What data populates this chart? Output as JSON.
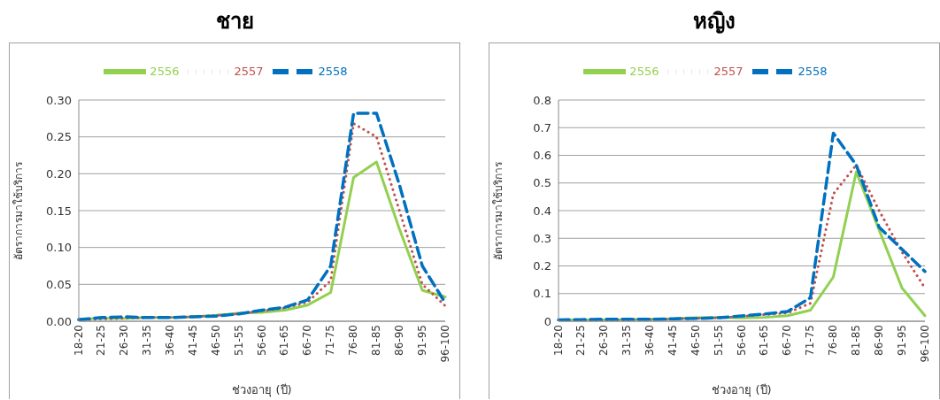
{
  "chart_data": [
    {
      "type": "line",
      "title": "ชาย",
      "xlabel": "ช่วงอายุ (ปี)",
      "ylabel": "อัตราการมาใช้บริการ",
      "categories": [
        "18-20",
        "21-25",
        "26-30",
        "31-35",
        "36-40",
        "41-45",
        "46-50",
        "51-55",
        "56-60",
        "61-65",
        "66-70",
        "71-75",
        "76-80",
        "81-85",
        "86-90",
        "91-95",
        "96-100"
      ],
      "series": [
        {
          "name": "2556",
          "color": "#92d050",
          "line_style": "solid",
          "values": [
            0.003,
            0.004,
            0.004,
            0.005,
            0.005,
            0.006,
            0.008,
            0.011,
            0.012,
            0.015,
            0.022,
            0.039,
            0.195,
            0.216,
            0.125,
            0.042,
            0.033
          ]
        },
        {
          "name": "2557",
          "color": "#c0504d",
          "line_style": "dotted",
          "values": [
            0.002,
            0.003,
            0.004,
            0.005,
            0.005,
            0.006,
            0.008,
            0.01,
            0.014,
            0.018,
            0.026,
            0.055,
            0.268,
            0.25,
            0.15,
            0.05,
            0.021
          ]
        },
        {
          "name": "2558",
          "color": "#0070c0",
          "line_style": "dashed",
          "values": [
            0.002,
            0.005,
            0.006,
            0.005,
            0.005,
            0.006,
            0.007,
            0.01,
            0.015,
            0.019,
            0.029,
            0.075,
            0.282,
            0.282,
            0.185,
            0.075,
            0.025
          ]
        }
      ],
      "ylim": [
        0,
        0.3
      ],
      "yticks": [
        {
          "value": 0,
          "label": "0.00"
        },
        {
          "value": 0.05,
          "label": "0.05"
        },
        {
          "value": 0.1,
          "label": "0.10"
        },
        {
          "value": 0.15,
          "label": "0.15"
        },
        {
          "value": 0.2,
          "label": "0.20"
        },
        {
          "value": 0.25,
          "label": "0.25"
        },
        {
          "value": 0.3,
          "label": "0.30"
        }
      ],
      "grid": "y",
      "legend": "top",
      "marker": "none"
    },
    {
      "type": "line",
      "title": "หญิง",
      "xlabel": "ช่วงอายุ (ปี)",
      "ylabel": "อัตราการมาใช้บริการ",
      "categories": [
        "18-20",
        "21-25",
        "26-30",
        "31-35",
        "36-40",
        "41-45",
        "46-50",
        "51-55",
        "56-60",
        "61-65",
        "66-70",
        "71-75",
        "76-80",
        "81-85",
        "86-90",
        "91-95",
        "96-100"
      ],
      "series": [
        {
          "name": "2556",
          "color": "#92d050",
          "line_style": "solid",
          "values": [
            0.005,
            0.005,
            0.005,
            0.006,
            0.007,
            0.009,
            0.013,
            0.014,
            0.012,
            0.014,
            0.02,
            0.04,
            0.16,
            0.54,
            0.33,
            0.12,
            0.02
          ]
        },
        {
          "name": "2557",
          "color": "#c0504d",
          "line_style": "dotted",
          "values": [
            0.0,
            0.003,
            0.004,
            0.005,
            0.006,
            0.008,
            0.01,
            0.012,
            0.018,
            0.024,
            0.03,
            0.065,
            0.46,
            0.565,
            0.4,
            0.25,
            0.12
          ]
        },
        {
          "name": "2558",
          "color": "#0070c0",
          "line_style": "dashed",
          "values": [
            0.005,
            0.006,
            0.007,
            0.007,
            0.007,
            0.009,
            0.01,
            0.013,
            0.019,
            0.026,
            0.035,
            0.085,
            0.68,
            0.565,
            0.34,
            0.26,
            0.18
          ]
        }
      ],
      "ylim": [
        0,
        0.8
      ],
      "yticks": [
        0,
        0.1,
        0.2,
        0.3,
        0.4,
        0.5,
        0.6,
        0.7,
        0.8
      ],
      "grid": "y",
      "legend": "top",
      "marker": "none"
    }
  ]
}
